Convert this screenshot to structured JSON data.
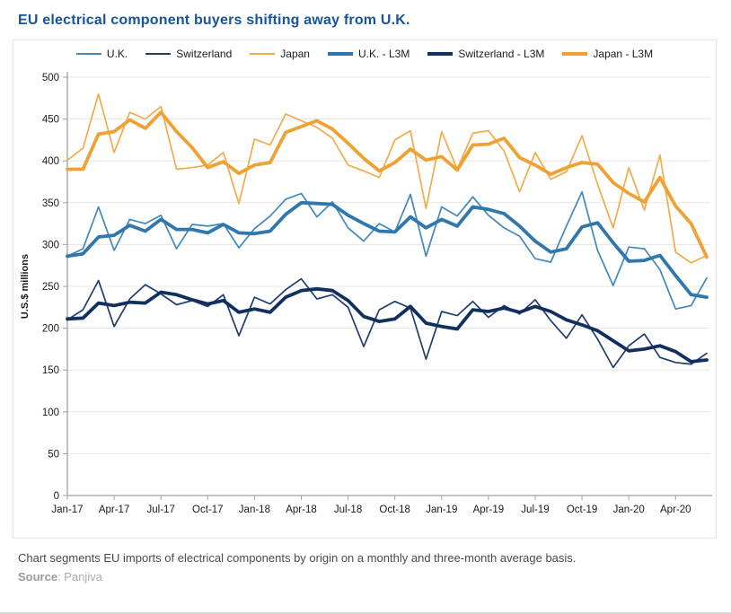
{
  "header": {
    "title": "EU electrical component buyers shifting away from U.K."
  },
  "footer": {
    "caption": "Chart segments EU imports of electrical components by origin on a monthly and three-month average basis.",
    "source_label": "Source",
    "source_rest": ": Panjiva"
  },
  "colors": {
    "title": "#17549b",
    "uk": "#4288BB",
    "uk_l3m": "#2F77AC",
    "switzerland": "#1F3D6E",
    "switzerland_l3m": "#12305E",
    "japan": "#F3AB4B",
    "japan_l3m": "#EFA232",
    "gridline": "#e6e6e6",
    "axis": "#a0a0a0"
  },
  "chart_data": {
    "type": "line",
    "ylabel": "U.S.$ millions",
    "ylim": [
      0,
      500
    ],
    "ytick_step": 50,
    "grid": "horizontal",
    "legend_position": "top-center",
    "x": [
      "Jan-17",
      "Feb-17",
      "Mar-17",
      "Apr-17",
      "May-17",
      "Jun-17",
      "Jul-17",
      "Aug-17",
      "Sep-17",
      "Oct-17",
      "Nov-17",
      "Dec-17",
      "Jan-18",
      "Feb-18",
      "Mar-18",
      "Apr-18",
      "May-18",
      "Jun-18",
      "Jul-18",
      "Aug-18",
      "Sep-18",
      "Oct-18",
      "Nov-18",
      "Dec-18",
      "Jan-19",
      "Feb-19",
      "Mar-19",
      "Apr-19",
      "May-19",
      "Jun-19",
      "Jul-19",
      "Aug-19",
      "Sep-19",
      "Oct-19",
      "Nov-19",
      "Dec-19",
      "Jan-20",
      "Feb-20",
      "Mar-20",
      "Apr-20",
      "May-20",
      "Jun-20"
    ],
    "x_tick_labels": [
      "Jan-17",
      "Apr-17",
      "Jul-17",
      "Oct-17",
      "Jan-18",
      "Apr-18",
      "Jul-18",
      "Oct-18",
      "Jan-19",
      "Apr-19",
      "Jul-19",
      "Oct-19",
      "Jan-20",
      "Apr-20"
    ],
    "series": [
      {
        "name": "U.K.",
        "color": "#4288BB",
        "weight": "thin",
        "values": [
          286,
          295,
          345,
          293,
          330,
          325,
          335,
          295,
          324,
          322,
          325,
          296,
          319,
          334,
          354,
          361,
          333,
          351,
          320,
          304,
          325,
          315,
          360,
          286,
          345,
          334,
          357,
          335,
          320,
          310,
          283,
          279,
          322,
          363,
          293,
          251,
          297,
          295,
          270,
          223,
          227,
          260
        ]
      },
      {
        "name": "Switzerland",
        "color": "#1F3D6E",
        "weight": "thin",
        "values": [
          210,
          222,
          257,
          202,
          235,
          252,
          241,
          228,
          233,
          226,
          240,
          191,
          237,
          229,
          246,
          259,
          235,
          240,
          225,
          178,
          222,
          232,
          224,
          163,
          220,
          215,
          232,
          213,
          227,
          217,
          234,
          209,
          188,
          216,
          187,
          153,
          179,
          193,
          165,
          159,
          157,
          170
        ]
      },
      {
        "name": "Japan",
        "color": "#F3AB4B",
        "weight": "thin",
        "values": [
          401,
          415,
          480,
          410,
          458,
          450,
          465,
          390,
          392,
          395,
          410,
          349,
          426,
          419,
          456,
          448,
          440,
          427,
          395,
          388,
          380,
          425,
          436,
          343,
          435,
          390,
          433,
          436,
          412,
          363,
          410,
          378,
          387,
          430,
          372,
          320,
          392,
          341,
          407,
          291,
          278,
          287
        ]
      },
      {
        "name": "U.K. - L3M",
        "color": "#2F77AC",
        "weight": "thick",
        "values": [
          286,
          289,
          309,
          311,
          323,
          316,
          330,
          318,
          318,
          314,
          324,
          314,
          313,
          316,
          336,
          350,
          349,
          348,
          335,
          325,
          316,
          315,
          333,
          320,
          330,
          322,
          345,
          342,
          337,
          322,
          304,
          291,
          295,
          321,
          326,
          302,
          280,
          281,
          287,
          263,
          240,
          237
        ]
      },
      {
        "name": "Switzerland - L3M",
        "color": "#12305E",
        "weight": "thick",
        "values": [
          211,
          212,
          230,
          227,
          231,
          230,
          243,
          240,
          234,
          229,
          233,
          219,
          223,
          219,
          237,
          245,
          247,
          245,
          233,
          214,
          208,
          211,
          226,
          206,
          202,
          199,
          222,
          220,
          224,
          219,
          226,
          220,
          210,
          204,
          197,
          185,
          173,
          175,
          179,
          172,
          160,
          162
        ]
      },
      {
        "name": "Japan - L3M",
        "color": "#EFA232",
        "weight": "thick",
        "values": [
          390,
          390,
          432,
          435,
          449,
          439,
          458,
          435,
          416,
          392,
          399,
          385,
          395,
          398,
          434,
          441,
          448,
          438,
          421,
          403,
          388,
          398,
          414,
          401,
          405,
          389,
          419,
          420,
          427,
          404,
          395,
          384,
          392,
          398,
          396,
          374,
          361,
          351,
          380,
          346,
          325,
          285
        ]
      }
    ]
  }
}
